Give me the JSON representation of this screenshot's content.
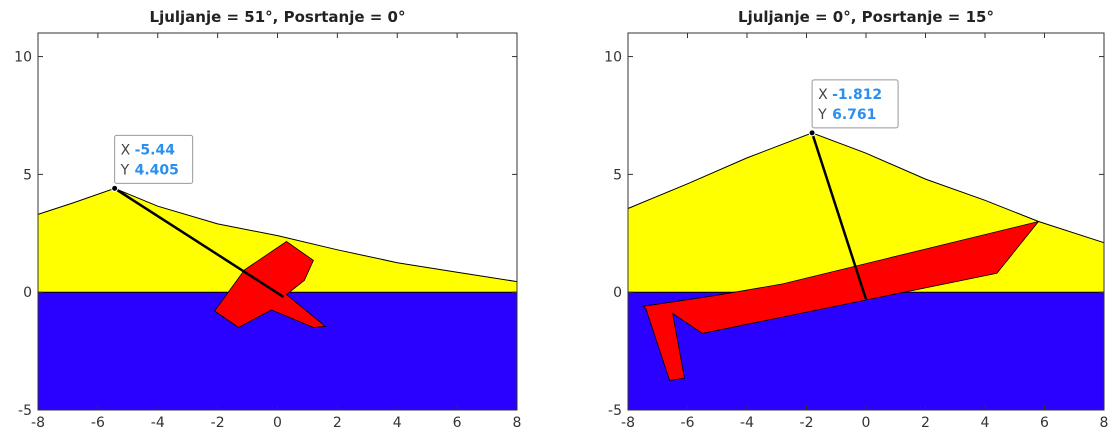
{
  "chart_data": [
    {
      "type": "area",
      "title": "Ljuljanje = 51°, Posrtanje = 0°",
      "xlim": [
        -8,
        8
      ],
      "ylim": [
        -5,
        11
      ],
      "xticks": [
        "-8",
        "-6",
        "-4",
        "-2",
        "0",
        "2",
        "4",
        "6",
        "8"
      ],
      "yticks": [
        "-5",
        "0",
        "5",
        "10"
      ],
      "colors": {
        "above": "#ffff00",
        "below": "#2a00ff",
        "hull": "#ff0000",
        "line": "#000000"
      },
      "sky_profile": [
        [
          -8,
          3.3
        ],
        [
          -6.8,
          3.8
        ],
        [
          -5.44,
          4.405
        ],
        [
          -4,
          3.65
        ],
        [
          -2,
          2.9
        ],
        [
          0,
          2.4
        ],
        [
          2,
          1.8
        ],
        [
          4,
          1.25
        ],
        [
          6,
          0.85
        ],
        [
          8,
          0.45
        ]
      ],
      "hull": [
        [
          -2.1,
          -0.8
        ],
        [
          -1.1,
          0.95
        ],
        [
          0.3,
          2.15
        ],
        [
          1.2,
          1.35
        ],
        [
          0.9,
          0.5
        ],
        [
          0.3,
          -0.1
        ],
        [
          1.6,
          -1.45
        ],
        [
          1.2,
          -1.5
        ],
        [
          -0.2,
          -0.75
        ],
        [
          -1.3,
          -1.5
        ]
      ],
      "mast": [
        [
          -5.44,
          4.405
        ],
        [
          0.2,
          -0.2
        ]
      ],
      "datatip": {
        "x_label": "X",
        "x_value": "-5.44",
        "y_label": "Y",
        "y_value": "4.405",
        "point": [
          -5.44,
          4.405
        ]
      }
    },
    {
      "type": "area",
      "title": "Ljuljanje = 0°, Posrtanje = 15°",
      "xlim": [
        -8,
        8
      ],
      "ylim": [
        -5,
        11
      ],
      "xticks": [
        "-8",
        "-6",
        "-4",
        "-2",
        "0",
        "2",
        "4",
        "6",
        "8"
      ],
      "yticks": [
        "-5",
        "0",
        "5",
        "10"
      ],
      "colors": {
        "above": "#ffff00",
        "below": "#2a00ff",
        "hull": "#ff0000",
        "line": "#000000"
      },
      "sky_profile": [
        [
          -8,
          3.55
        ],
        [
          -6,
          4.6
        ],
        [
          -4,
          5.7
        ],
        [
          -1.812,
          6.761
        ],
        [
          0,
          5.9
        ],
        [
          2,
          4.8
        ],
        [
          4,
          3.9
        ],
        [
          5.8,
          3.0
        ],
        [
          8,
          2.1
        ]
      ],
      "hull": [
        [
          -7.4,
          -0.7
        ],
        [
          -6.6,
          -3.75
        ],
        [
          -6.1,
          -3.65
        ],
        [
          -6.5,
          -0.9
        ],
        [
          -5.5,
          -1.75
        ],
        [
          4.4,
          0.8
        ],
        [
          5.8,
          3.0
        ],
        [
          -2.8,
          0.35
        ],
        [
          -5.1,
          -0.15
        ],
        [
          -7.5,
          -0.6
        ]
      ],
      "mast": [
        [
          -1.812,
          6.761
        ],
        [
          0,
          -0.3
        ]
      ],
      "datatip": {
        "x_label": "X",
        "x_value": "-1.812",
        "y_label": "Y",
        "y_value": "6.761",
        "point": [
          -1.812,
          6.761
        ]
      }
    }
  ]
}
